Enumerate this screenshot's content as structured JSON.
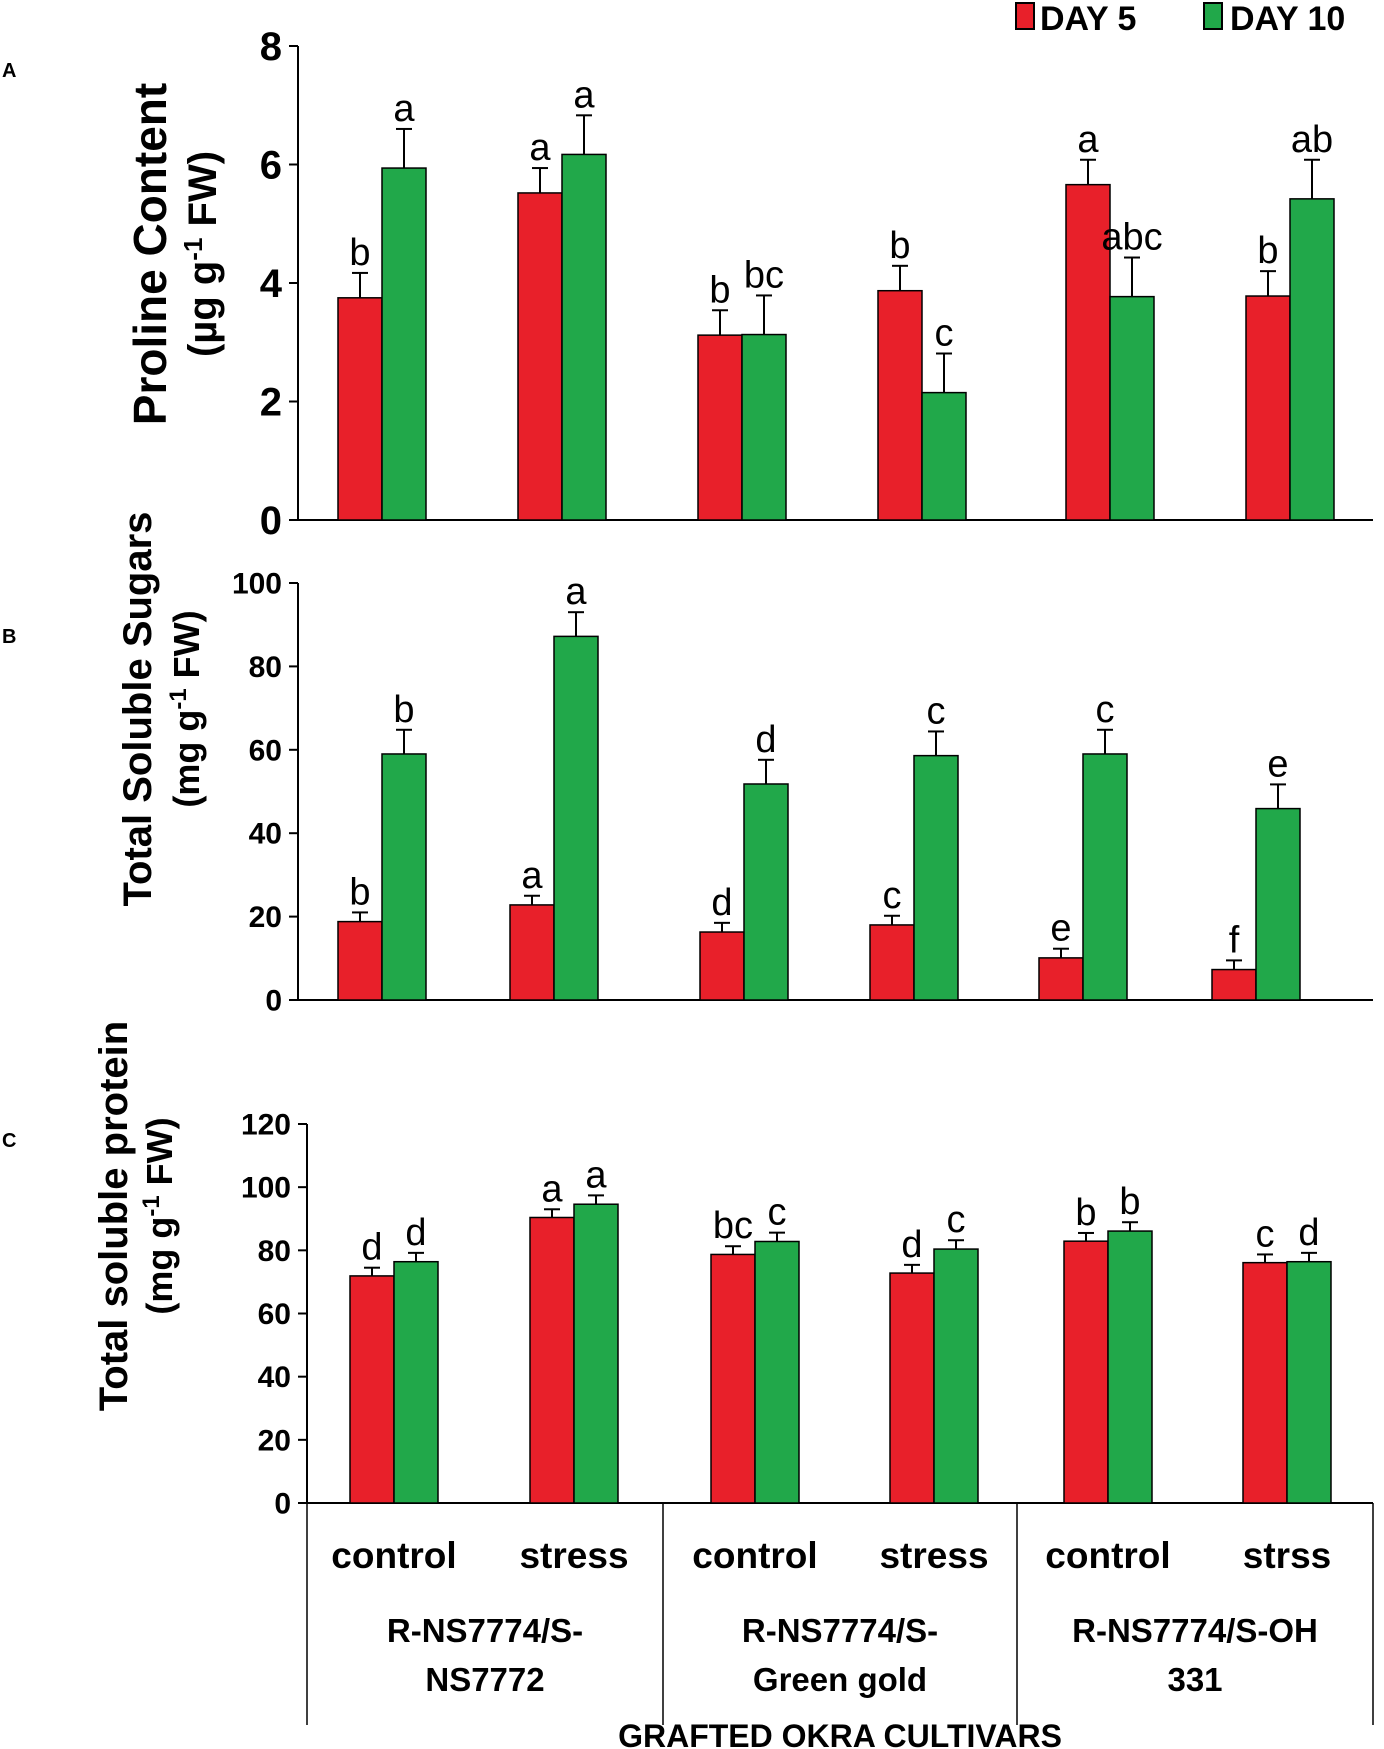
{
  "legend": {
    "items": [
      {
        "label": "DAY 5",
        "color": "#E8202A"
      },
      {
        "label": "DAY 10",
        "color": "#21A84A"
      }
    ]
  },
  "colors": {
    "day5": "#E8202A",
    "day10": "#21A84A",
    "axis": "#000000"
  },
  "xaxis": {
    "title": "GRAFTED OKRA CULTIVARS",
    "treatments": [
      "control",
      "stress",
      "control",
      "stress",
      "control",
      "strss"
    ],
    "cultivars": [
      {
        "line1": "R-NS7774/S-",
        "line2": "NS7772"
      },
      {
        "line1": "R-NS7774/S-",
        "line2": "Green gold"
      },
      {
        "line1": "R-NS7774/S-OH",
        "line2": "331"
      }
    ]
  },
  "chart_data": [
    {
      "type": "bar",
      "panel": "A",
      "ylabel_line1": "Proline Content",
      "ylabel_line2_prefix": "(µg g",
      "ylabel_sup": "-1",
      "ylabel_line2_suffix": " FW)",
      "ylim": [
        0,
        8
      ],
      "yticks": [
        0,
        2,
        4,
        6,
        8
      ],
      "categories": [
        "control",
        "stress",
        "control",
        "stress",
        "control",
        "strss"
      ],
      "series": [
        {
          "name": "DAY 5",
          "values": [
            3.75,
            5.52,
            3.12,
            3.87,
            5.66,
            3.78
          ],
          "errors": [
            0.42,
            0.42,
            0.42,
            0.42,
            0.42,
            0.42
          ],
          "letters": [
            "b",
            "a",
            "b",
            "b",
            "a",
            "b"
          ]
        },
        {
          "name": "DAY 10",
          "values": [
            5.94,
            6.17,
            3.13,
            2.15,
            3.77,
            5.42
          ],
          "errors": [
            0.66,
            0.66,
            0.66,
            0.66,
            0.66,
            0.66
          ],
          "letters": [
            "a",
            "a",
            "bc",
            "c",
            "abc",
            "ab"
          ]
        }
      ]
    },
    {
      "type": "bar",
      "panel": "B",
      "ylabel_line1": "Total Soluble Sugars",
      "ylabel_line2_prefix": "(mg g",
      "ylabel_sup": "-1",
      "ylabel_line2_suffix": " FW)",
      "ylim": [
        0,
        100
      ],
      "yticks": [
        0,
        20,
        40,
        60,
        80,
        100
      ],
      "categories": [
        "control",
        "stress",
        "control",
        "stress",
        "control",
        "strss"
      ],
      "series": [
        {
          "name": "DAY 5",
          "values": [
            18.8,
            22.8,
            16.3,
            18.0,
            10.1,
            7.3
          ],
          "errors": [
            2.2,
            2.2,
            2.2,
            2.2,
            2.2,
            2.2
          ],
          "letters": [
            "b",
            "a",
            "d",
            "c",
            "e",
            "f"
          ]
        },
        {
          "name": "DAY 10",
          "values": [
            59.0,
            87.2,
            51.8,
            58.6,
            59.0,
            45.9
          ],
          "errors": [
            5.8,
            5.8,
            5.8,
            5.8,
            5.8,
            5.8
          ],
          "letters": [
            "b",
            "a",
            "d",
            "c",
            "c",
            "e"
          ]
        }
      ]
    },
    {
      "type": "bar",
      "panel": "C",
      "ylabel_line1": "Total soluble protein",
      "ylabel_line2_prefix": "(mg g",
      "ylabel_sup": "-1",
      "ylabel_line2_suffix": " FW)",
      "ylim": [
        0,
        120
      ],
      "yticks": [
        0,
        20,
        40,
        60,
        80,
        100,
        120
      ],
      "categories": [
        "control",
        "stress",
        "control",
        "stress",
        "control",
        "strss"
      ],
      "series": [
        {
          "name": "DAY 5",
          "values": [
            71.9,
            90.4,
            78.7,
            72.8,
            82.9,
            76.1
          ],
          "errors": [
            2.6,
            2.6,
            2.6,
            2.6,
            2.6,
            2.6
          ],
          "letters": [
            "d",
            "a",
            "bc",
            "d",
            "b",
            "c"
          ]
        },
        {
          "name": "DAY 10",
          "values": [
            76.4,
            94.6,
            82.8,
            80.4,
            86.1,
            76.4
          ],
          "errors": [
            2.8,
            2.8,
            2.8,
            2.8,
            2.8,
            2.8
          ],
          "letters": [
            "d",
            "a",
            "c",
            "c",
            "b",
            "d"
          ]
        }
      ]
    }
  ]
}
